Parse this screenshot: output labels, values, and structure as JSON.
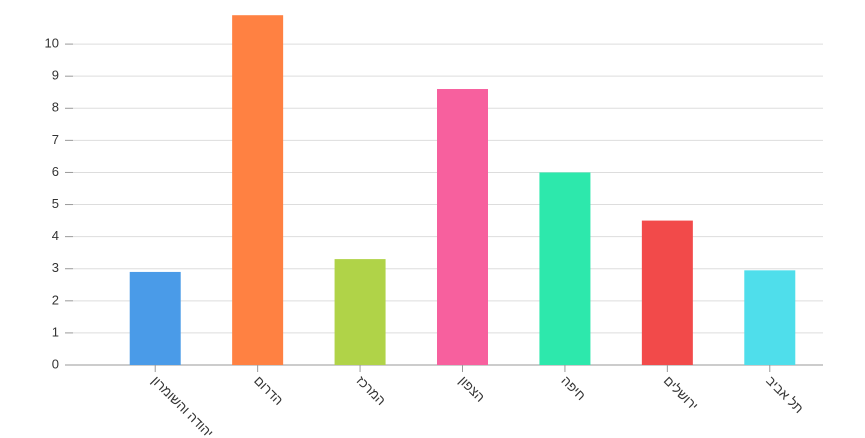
{
  "chart_data": {
    "type": "bar",
    "categories": [
      "יהודה והשומרון",
      "הדרום",
      "המרכז",
      "הצפון",
      "חיפה",
      "ירושלים",
      "תל אביב"
    ],
    "values": [
      2.9,
      10.9,
      3.3,
      8.6,
      6.0,
      4.5,
      2.95
    ],
    "colors": [
      "#4a9be8",
      "#ff8142",
      "#b0d348",
      "#f7609e",
      "#2de8ac",
      "#f24a4a",
      "#4fdeeb"
    ],
    "ylim": [
      0,
      11
    ],
    "yticks": [
      0,
      1,
      2,
      3,
      4,
      5,
      6,
      7,
      8,
      9,
      10
    ],
    "grid": true
  }
}
